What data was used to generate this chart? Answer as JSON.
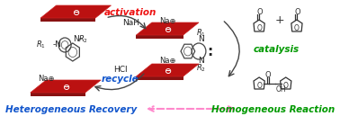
{
  "bg_color": "#ffffff",
  "left_label": "Heterogeneous Recovery",
  "right_label": "Homogeneous Reaction",
  "left_label_color": "#1155cc",
  "right_label_color": "#009900",
  "activation_text": "activation",
  "activation_color": "#ee1111",
  "naH_text": "NaH",
  "recycle_text": "recycle",
  "recycle_color": "#1155cc",
  "HCl_text": "HCl",
  "catalysis_text": "catalysis",
  "catalysis_color": "#009900",
  "plate_color": "#bb1111",
  "plate_dark": "#881111",
  "arrow_pink": "#ff88cc",
  "text_dark": "#222222",
  "ominus": "⊖",
  "naplus": "Na⊕",
  "figw": 3.78,
  "figh": 1.29,
  "dpi": 100
}
